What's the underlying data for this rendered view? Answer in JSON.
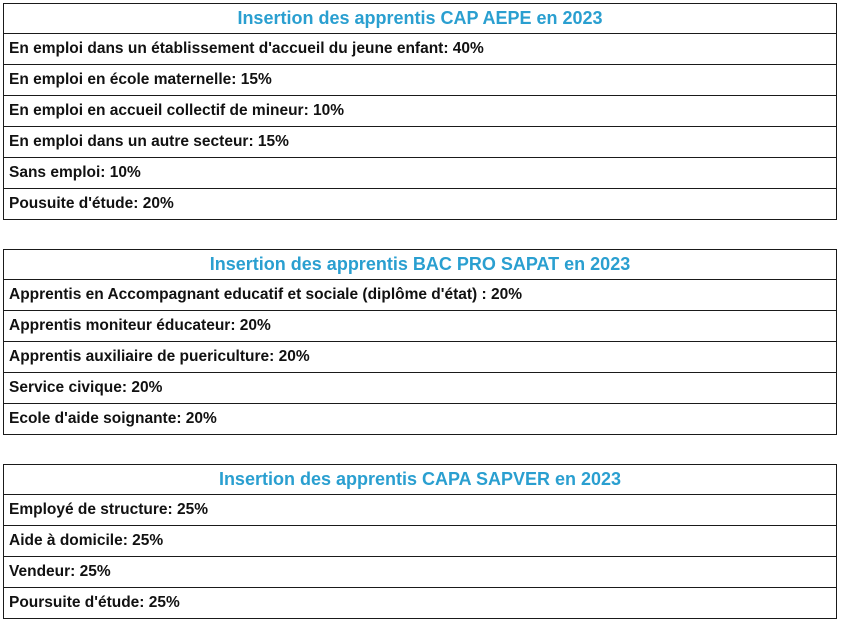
{
  "title_color": "#2a9fd0",
  "sections": [
    {
      "title": "Insertion des apprentis CAP AEPE en 2023",
      "items": [
        "En emploi dans un établissement d'accueil du jeune enfant: 40%",
        "En emploi en école maternelle: 15%",
        "En emploi en accueil collectif de mineur: 10%",
        "En emploi dans un autre secteur: 15%",
        "Sans emploi: 10%",
        "Pousuite d'étude: 20%"
      ]
    },
    {
      "title": "Insertion des apprentis BAC PRO SAPAT en 2023",
      "items": [
        "Apprentis en Accompagnant educatif et sociale (diplôme d'état) : 20%",
        "Apprentis moniteur éducateur: 20%",
        "Apprentis auxiliaire de puericulture: 20%",
        "Service civique: 20%",
        "Ecole d'aide soignante: 20%"
      ]
    },
    {
      "title": "Insertion des apprentis CAPA SAPVER en 2023",
      "items": [
        "Employé de structure: 25%",
        "Aide à domicile: 25%",
        "Vendeur: 25%",
        "Poursuite d'étude: 25%"
      ]
    }
  ]
}
